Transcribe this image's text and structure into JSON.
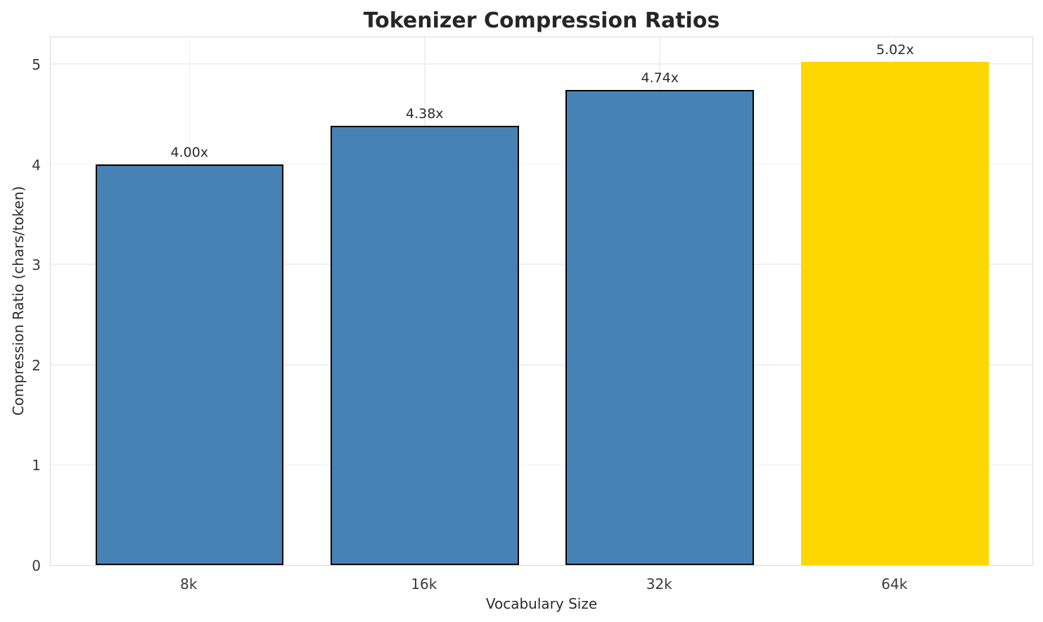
{
  "chart_data": {
    "type": "bar",
    "title": "Tokenizer Compression Ratios",
    "xlabel": "Vocabulary Size",
    "ylabel": "Compression Ratio (chars/token)",
    "categories": [
      "8k",
      "16k",
      "32k",
      "64k"
    ],
    "values": [
      4.0,
      4.38,
      4.74,
      5.02
    ],
    "bar_labels": [
      "4.00x",
      "4.38x",
      "4.74x",
      "5.02x"
    ],
    "bar_colors": [
      "#4682B4",
      "#4682B4",
      "#4682B4",
      "#FFD700"
    ],
    "bar_edge_colors": [
      "#000000",
      "#000000",
      "#000000",
      "none"
    ],
    "highlight_index": 3,
    "yticks": [
      0,
      1,
      2,
      3,
      4,
      5
    ],
    "ylim": [
      0,
      5.28
    ],
    "xlim": [
      -0.59,
      3.59
    ],
    "bar_width": 0.8,
    "grid": true,
    "legend": "none",
    "colors": {
      "bar": "#4682B4",
      "highlight": "#FFD700",
      "edge": "#000000",
      "grid": "#F0F0F0",
      "spine": "#D9D9D9",
      "text": "#2B2B2B"
    }
  }
}
